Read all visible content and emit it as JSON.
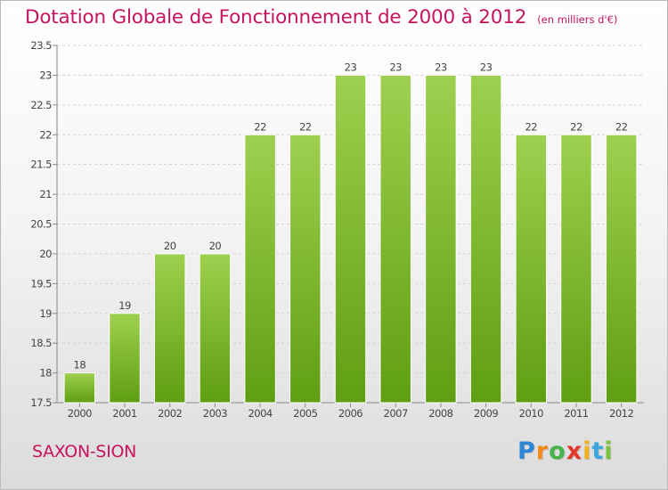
{
  "header": {
    "title": "Dotation Globale de Fonctionnement de 2000 à 2012",
    "unit": "(en milliers d'€)"
  },
  "footer": {
    "commune": "SAXON-SION",
    "logo_letters": [
      "P",
      "r",
      "o",
      "x",
      "i",
      "t",
      "i"
    ],
    "logo_colors": [
      "#2e86d6",
      "#f28a1a",
      "#46b34a",
      "#e23a2c",
      "#f2b01e",
      "#3aa6dd",
      "#7cc242"
    ]
  },
  "chart_data": {
    "type": "bar",
    "title": "Dotation Globale de Fonctionnement de 2000 à 2012",
    "subtitle": "(en milliers d'€)",
    "xlabel": "",
    "ylabel": "",
    "categories": [
      "2000",
      "2001",
      "2002",
      "2003",
      "2004",
      "2005",
      "2006",
      "2007",
      "2008",
      "2009",
      "2010",
      "2011",
      "2012"
    ],
    "values": [
      18,
      19,
      20,
      20,
      22,
      22,
      23,
      23,
      23,
      23,
      22,
      22,
      22
    ],
    "ylim": [
      17.5,
      23.5
    ],
    "yticks": [
      17.5,
      18,
      18.5,
      19,
      19.5,
      20,
      20.5,
      21,
      21.5,
      22,
      22.5,
      23,
      23.5
    ],
    "grid": true,
    "bar_color_top": "#9ed04f",
    "bar_color_bottom": "#5f9e12"
  }
}
